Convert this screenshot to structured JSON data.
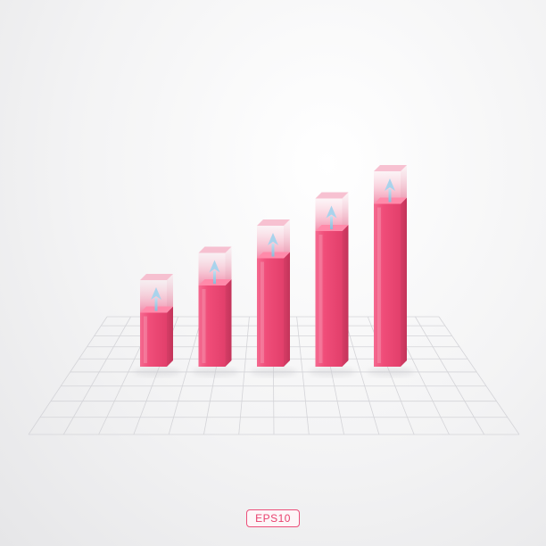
{
  "chart_data": {
    "type": "bar",
    "style": "3d-isometric-infographic",
    "categories": [
      "",
      "",
      "",
      "",
      ""
    ],
    "series": [
      {
        "values": [
          1,
          2,
          3,
          4,
          5
        ]
      }
    ],
    "targets": [
      2,
      3,
      4,
      5,
      6
    ],
    "growth_arrows": true,
    "grid": true,
    "legend": "none",
    "colors": {
      "bar_front": "#f04d79",
      "bar_side": "#d23a62",
      "bar_top": "#ff8aaa",
      "ghost": "#f7a8bf",
      "arrow": "#9bc9e4",
      "grid": "#d4d4d8"
    }
  },
  "footer": {
    "badge": "EPS10"
  }
}
